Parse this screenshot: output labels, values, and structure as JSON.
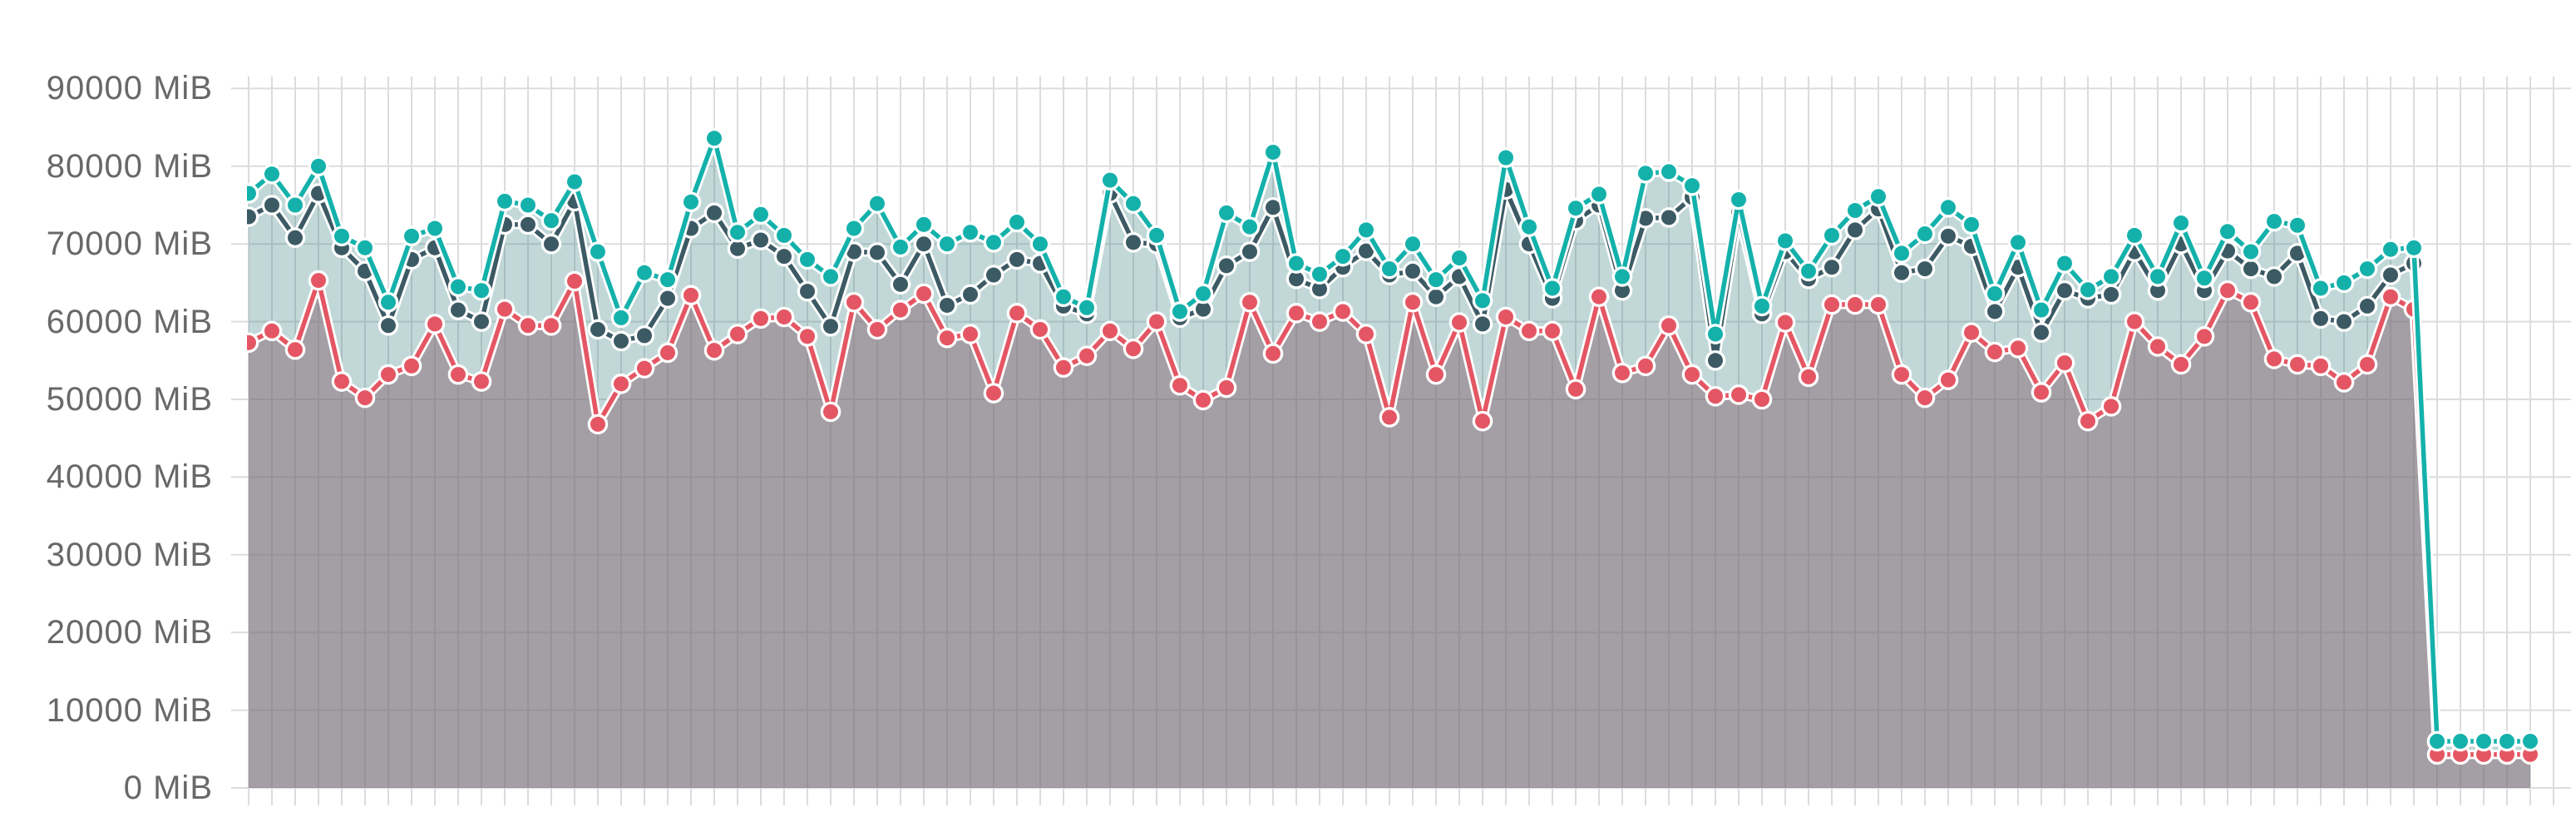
{
  "chart_data": {
    "type": "area",
    "title": "",
    "y_axis": {
      "unit": "MiB",
      "min": 0,
      "max": 90000,
      "tick_step": 10000,
      "tick_labels": [
        "90000 MiB",
        "80000 MiB",
        "70000 MiB",
        "60000 MiB",
        "50000 MiB",
        "40000 MiB",
        "30000 MiB",
        "20000 MiB",
        "10000 MiB",
        "0 MiB"
      ],
      "tick_values": [
        90000,
        80000,
        70000,
        60000,
        50000,
        40000,
        30000,
        20000,
        10000,
        0
      ]
    },
    "x_axis": {
      "tick_labels": [],
      "grid": true
    },
    "legend": {
      "visible": false
    },
    "grid_on": true,
    "colors": {
      "teal_line": "#14b1ab",
      "slate_line": "#3c5a64",
      "red_line": "#e45663",
      "teal_band_fill": "rgba(35,115,115,0.28)",
      "gray_area_fill": "rgba(115,107,115,0.65)",
      "gridline": "#dcdcdf",
      "dot_halo": "#ffffff",
      "axis_label": "#686868",
      "background": "#ffffff"
    },
    "series": [
      {
        "name": "teal",
        "role": "top line with light teal band fill down to red series",
        "color": "#14b1ab",
        "values": [
          76500,
          79000,
          75000,
          80000,
          71000,
          69500,
          62500,
          71000,
          72000,
          64500,
          64000,
          75500,
          75000,
          73000,
          78000,
          69000,
          60500,
          66300,
          65400,
          75400,
          83600,
          71500,
          73800,
          71100,
          68000,
          65800,
          72000,
          75200,
          69600,
          72500,
          70000,
          71500,
          70200,
          72800,
          70000,
          63200,
          61800,
          78200,
          75200,
          71100,
          61300,
          63600,
          74000,
          72200,
          81800,
          67500,
          66100,
          68400,
          71800,
          66800,
          70000,
          65400,
          68200,
          62700,
          81100,
          72200,
          64300,
          74600,
          76400,
          65800,
          79100,
          79300,
          77500,
          58400,
          75700,
          62000,
          70400,
          66500,
          71100,
          74300,
          76100,
          68800,
          71300,
          74700,
          72500,
          63600,
          70200,
          61500,
          67500,
          64100,
          65800,
          71100,
          65800,
          72700,
          65600,
          71600,
          69000,
          72900,
          72400,
          64300,
          65000,
          66800,
          69300,
          69500,
          6000,
          6000,
          6000,
          6000,
          6000
        ]
      },
      {
        "name": "slate",
        "role": "middle dark line, no fill",
        "color": "#3c5a64",
        "values": [
          73500,
          75000,
          70800,
          76500,
          69500,
          66500,
          59500,
          68000,
          69500,
          61500,
          60000,
          72500,
          72500,
          70000,
          75500,
          59000,
          57500,
          58200,
          63000,
          72000,
          74000,
          69400,
          70500,
          68400,
          63900,
          59400,
          69000,
          68900,
          64800,
          70000,
          62100,
          63500,
          66000,
          68000,
          67500,
          62000,
          61000,
          76500,
          70200,
          70000,
          60500,
          61600,
          67200,
          69000,
          74700,
          65500,
          64200,
          67000,
          69100,
          66000,
          66500,
          63200,
          65800,
          59700,
          77000,
          70000,
          63000,
          73000,
          75000,
          64000,
          73300,
          73400,
          76000,
          55000,
          74000,
          61000,
          69000,
          65500,
          67000,
          71800,
          74500,
          66300,
          66800,
          71000,
          69700,
          61300,
          67000,
          58600,
          64000,
          63000,
          63500,
          69000,
          64000,
          70000,
          64000,
          69100,
          66800,
          65800,
          68800,
          60400,
          60000,
          62000,
          66000,
          67500,
          5900,
          5900,
          5900,
          5900,
          5900
        ]
      },
      {
        "name": "red",
        "role": "bottom line with gray area fill down to zero",
        "color": "#e45663",
        "values": [
          57300,
          58800,
          56400,
          65300,
          52300,
          50200,
          53200,
          54300,
          59700,
          53200,
          52300,
          61600,
          59500,
          59500,
          65200,
          46800,
          52000,
          54000,
          56000,
          63400,
          56300,
          58400,
          60400,
          60600,
          58100,
          48400,
          62500,
          59000,
          61500,
          63600,
          57900,
          58400,
          50800,
          61100,
          59000,
          54100,
          55600,
          58800,
          56500,
          60000,
          51800,
          49900,
          51500,
          62500,
          55900,
          61100,
          60000,
          61300,
          58400,
          47700,
          62500,
          53200,
          59900,
          47200,
          60600,
          58800,
          58800,
          51300,
          63200,
          53400,
          54300,
          59500,
          53200,
          50400,
          50600,
          50000,
          59900,
          52900,
          62200,
          62200,
          62200,
          53200,
          50200,
          52500,
          58600,
          56100,
          56600,
          50900,
          54700,
          47200,
          49100,
          60000,
          56800,
          54500,
          58100,
          64000,
          62500,
          55200,
          54500,
          54300,
          52200,
          54500,
          63200,
          61600,
          4300,
          4300,
          4300,
          4300,
          4300
        ]
      }
    ]
  }
}
